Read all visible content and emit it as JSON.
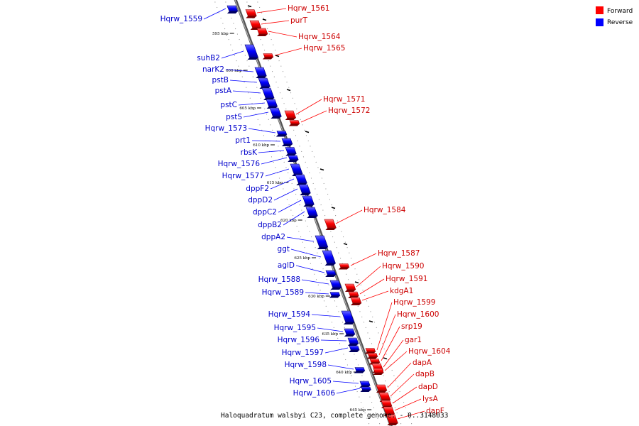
{
  "genome_title": "Haloquadratum walsbyi C23, complete genome. - 0..3148033",
  "legend": [
    {
      "label": "Forward",
      "color": "#ff0000"
    },
    {
      "label": "Reverse",
      "color": "#0000ff"
    }
  ],
  "ticks": [
    "595 kbp",
    "600 kbp",
    "605 kbp",
    "610 kbp",
    "615 kbp",
    "620 kbp",
    "625 kbp",
    "630 kbp",
    "635 kbp",
    "640 kbp",
    "645 kbp"
  ],
  "forward_genes": [
    "Hqrw_1561",
    "purT",
    "Hqrw_1564",
    "Hqrw_1565",
    "Hqrw_1571",
    "Hqrw_1572",
    "Hqrw_1584",
    "Hqrw_1587",
    "Hqrw_1590",
    "Hqrw_1591",
    "kdgA1",
    "Hqrw_1599",
    "Hqrw_1600",
    "srp19",
    "gar1",
    "Hqrw_1604",
    "dapA",
    "dapB",
    "dapD",
    "lysA",
    "dapF"
  ],
  "reverse_genes": [
    "Hqrw_1559",
    "suhB2",
    "narK2",
    "pstB",
    "pstA",
    "pstC",
    "pstS",
    "Hqrw_1573",
    "prt1",
    "rbsK",
    "Hqrw_1576",
    "Hqrw_1577",
    "dppF2",
    "dppD2",
    "dppC2",
    "dppB2",
    "dppA2",
    "ggt",
    "aglD",
    "Hqrw_1588",
    "Hqrw_1589",
    "Hqrw_1594",
    "Hqrw_1595",
    "Hqrw_1596",
    "Hqrw_1597",
    "Hqrw_1598",
    "Hqrw_1605",
    "Hqrw_1606"
  ]
}
